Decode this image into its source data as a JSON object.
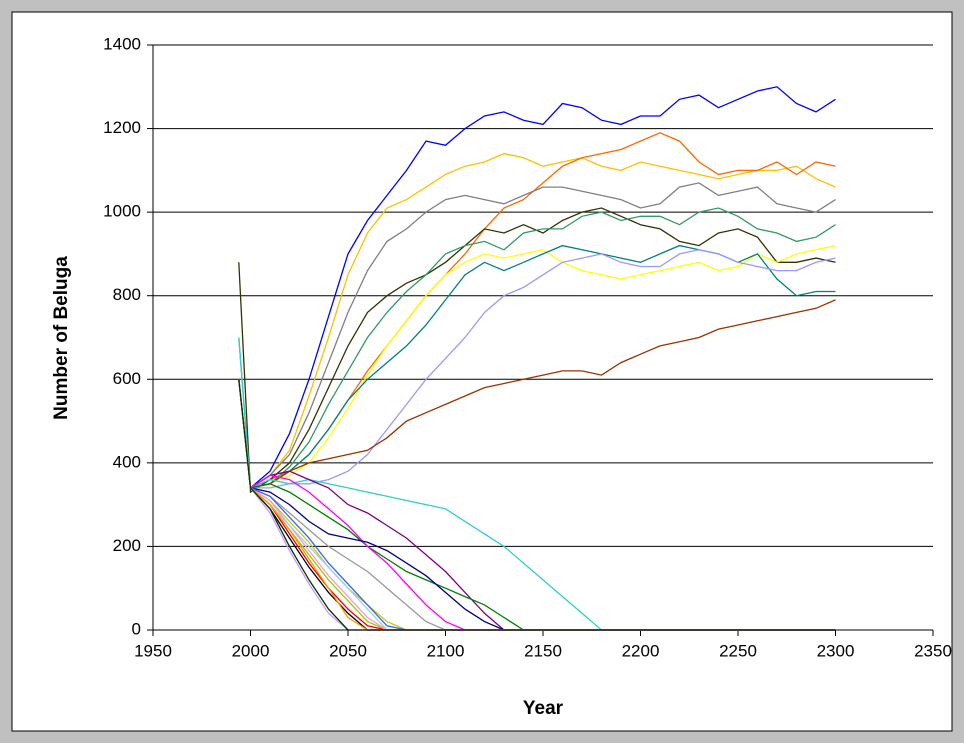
{
  "chart_data": {
    "type": "line",
    "x_label": "Year",
    "y_label": "Number of Beluga",
    "x": [
      1994,
      2000,
      2010,
      2020,
      2030,
      2040,
      2050,
      2060,
      2070,
      2080,
      2090,
      2100,
      2110,
      2120,
      2130,
      2140,
      2150,
      2160,
      2170,
      2180,
      2190,
      2200,
      2210,
      2220,
      2230,
      2240,
      2250,
      2260,
      2270,
      2280,
      2290,
      2300
    ],
    "xlim": [
      1950,
      2350
    ],
    "xticks": [
      1950,
      2000,
      2050,
      2100,
      2150,
      2200,
      2250,
      2300,
      2350
    ],
    "ylim": [
      0,
      1400
    ],
    "yticks": [
      0,
      200,
      400,
      600,
      800,
      1000,
      1200,
      1400
    ],
    "grid": true,
    "series": [
      {
        "color": "#0000ff",
        "values": [
          600,
          340,
          380,
          470,
          600,
          750,
          900,
          980,
          1040,
          1100,
          1170,
          1160,
          1200,
          1230,
          1240,
          1220,
          1210,
          1260,
          1250,
          1220,
          1210,
          1230,
          1230,
          1270,
          1280,
          1250,
          1270,
          1290,
          1300,
          1260,
          1240,
          1270
        ]
      },
      {
        "color": "#ffc000",
        "values": [
          600,
          340,
          370,
          430,
          560,
          700,
          850,
          950,
          1010,
          1030,
          1060,
          1090,
          1110,
          1120,
          1140,
          1130,
          1110,
          1120,
          1130,
          1110,
          1100,
          1120,
          1110,
          1100,
          1090,
          1080,
          1090,
          1100,
          1100,
          1110,
          1080,
          1060
        ]
      },
      {
        "color": "#ff6600",
        "values": [
          600,
          340,
          360,
          380,
          420,
          480,
          550,
          620,
          680,
          740,
          800,
          850,
          900,
          960,
          1010,
          1030,
          1070,
          1110,
          1130,
          1140,
          1150,
          1170,
          1190,
          1170,
          1120,
          1090,
          1100,
          1100,
          1120,
          1090,
          1120,
          1110
        ]
      },
      {
        "color": "#808080",
        "values": [
          700,
          340,
          370,
          420,
          520,
          640,
          760,
          860,
          930,
          960,
          1000,
          1030,
          1040,
          1030,
          1020,
          1040,
          1060,
          1060,
          1050,
          1040,
          1030,
          1010,
          1020,
          1060,
          1070,
          1040,
          1050,
          1060,
          1020,
          1010,
          1000,
          1030
        ]
      },
      {
        "color": "#333300",
        "values": [
          880,
          330,
          360,
          400,
          480,
          580,
          680,
          760,
          800,
          830,
          850,
          880,
          920,
          960,
          950,
          970,
          950,
          980,
          1000,
          1010,
          990,
          970,
          960,
          930,
          920,
          950,
          960,
          940,
          880,
          880,
          890,
          880
        ]
      },
      {
        "color": "#ffff00",
        "values": [
          600,
          340,
          350,
          370,
          400,
          460,
          530,
          610,
          680,
          740,
          800,
          850,
          880,
          900,
          890,
          900,
          910,
          880,
          860,
          850,
          840,
          850,
          860,
          870,
          880,
          860,
          870,
          900,
          880,
          900,
          910,
          920
        ]
      },
      {
        "color": "#008080",
        "values": [
          600,
          340,
          350,
          380,
          420,
          480,
          550,
          600,
          640,
          680,
          730,
          790,
          850,
          880,
          860,
          880,
          900,
          920,
          910,
          900,
          890,
          880,
          900,
          920,
          910,
          900,
          880,
          900,
          840,
          800,
          810,
          810
        ]
      },
      {
        "color": "#339966",
        "values": [
          600,
          340,
          350,
          390,
          450,
          540,
          620,
          700,
          760,
          810,
          850,
          900,
          920,
          930,
          910,
          950,
          960,
          960,
          990,
          1000,
          980,
          990,
          990,
          970,
          1000,
          1010,
          990,
          960,
          950,
          930,
          940,
          970
        ]
      },
      {
        "color": "#9999ff",
        "values": [
          600,
          340,
          340,
          350,
          350,
          360,
          380,
          420,
          480,
          540,
          600,
          650,
          700,
          760,
          800,
          820,
          850,
          880,
          890,
          900,
          880,
          870,
          870,
          900,
          910,
          900,
          880,
          870,
          860,
          860,
          880,
          890
        ]
      },
      {
        "color": "#993300",
        "values": [
          600,
          340,
          350,
          380,
          400,
          410,
          420,
          430,
          460,
          500,
          520,
          540,
          560,
          580,
          590,
          600,
          610,
          620,
          620,
          610,
          640,
          660,
          680,
          690,
          700,
          720,
          730,
          740,
          750,
          760,
          770,
          790
        ]
      },
      {
        "color": "#33cccc",
        "values": [
          700,
          340,
          360,
          350,
          360,
          350,
          340,
          330,
          320,
          310,
          300,
          290,
          260,
          230,
          200,
          160,
          120,
          80,
          40,
          0,
          0,
          0,
          0,
          0,
          0,
          0,
          0,
          0,
          0,
          0,
          0,
          0
        ]
      },
      {
        "color": "#800080",
        "values": [
          600,
          340,
          370,
          380,
          360,
          340,
          300,
          280,
          250,
          220,
          180,
          140,
          90,
          40,
          0,
          0,
          0,
          0,
          0,
          0,
          0,
          0,
          0,
          0,
          0,
          0,
          0,
          0,
          0,
          0,
          0,
          0
        ]
      },
      {
        "color": "#008000",
        "values": [
          600,
          340,
          350,
          330,
          300,
          270,
          240,
          200,
          170,
          140,
          120,
          100,
          80,
          60,
          30,
          0,
          0,
          0,
          0,
          0,
          0,
          0,
          0,
          0,
          0,
          0,
          0,
          0,
          0,
          0,
          0,
          0
        ]
      },
      {
        "color": "#ff00ff",
        "values": [
          600,
          340,
          370,
          360,
          330,
          290,
          250,
          200,
          160,
          110,
          60,
          20,
          0,
          0,
          0,
          0,
          0,
          0,
          0,
          0,
          0,
          0,
          0,
          0,
          0,
          0,
          0,
          0,
          0,
          0,
          0,
          0
        ]
      },
      {
        "color": "#000080",
        "values": [
          600,
          340,
          330,
          300,
          260,
          230,
          220,
          210,
          190,
          160,
          130,
          90,
          50,
          20,
          0,
          0,
          0,
          0,
          0,
          0,
          0,
          0,
          0,
          0,
          0,
          0,
          0,
          0,
          0,
          0,
          0,
          0
        ]
      },
      {
        "color": "#999999",
        "values": [
          600,
          340,
          320,
          280,
          240,
          200,
          170,
          140,
          100,
          60,
          20,
          0,
          0,
          0,
          0,
          0,
          0,
          0,
          0,
          0,
          0,
          0,
          0,
          0,
          0,
          0,
          0,
          0,
          0,
          0,
          0,
          0
        ]
      },
      {
        "color": "#cccc00",
        "values": [
          600,
          340,
          310,
          260,
          210,
          150,
          100,
          60,
          20,
          0,
          0,
          0,
          0,
          0,
          0,
          0,
          0,
          0,
          0,
          0,
          0,
          0,
          0,
          0,
          0,
          0,
          0,
          0,
          0,
          0,
          0,
          0
        ]
      },
      {
        "color": "#ff0000",
        "values": [
          600,
          340,
          300,
          230,
          160,
          100,
          50,
          10,
          0,
          0,
          0,
          0,
          0,
          0,
          0,
          0,
          0,
          0,
          0,
          0,
          0,
          0,
          0,
          0,
          0,
          0,
          0,
          0,
          0,
          0,
          0,
          0
        ]
      },
      {
        "color": "#000000",
        "values": [
          600,
          340,
          290,
          220,
          150,
          90,
          40,
          0,
          0,
          0,
          0,
          0,
          0,
          0,
          0,
          0,
          0,
          0,
          0,
          0,
          0,
          0,
          0,
          0,
          0,
          0,
          0,
          0,
          0,
          0,
          0,
          0
        ]
      },
      {
        "color": "#99cc00",
        "values": [
          600,
          340,
          300,
          240,
          180,
          120,
          70,
          20,
          0,
          0,
          0,
          0,
          0,
          0,
          0,
          0,
          0,
          0,
          0,
          0,
          0,
          0,
          0,
          0,
          0,
          0,
          0,
          0,
          0,
          0,
          0,
          0
        ]
      },
      {
        "color": "#ff99cc",
        "values": [
          600,
          340,
          310,
          250,
          190,
          130,
          80,
          30,
          0,
          0,
          0,
          0,
          0,
          0,
          0,
          0,
          0,
          0,
          0,
          0,
          0,
          0,
          0,
          0,
          0,
          0,
          0,
          0,
          0,
          0,
          0,
          0
        ]
      },
      {
        "color": "#cc99ff",
        "values": [
          600,
          340,
          280,
          190,
          110,
          40,
          0,
          0,
          0,
          0,
          0,
          0,
          0,
          0,
          0,
          0,
          0,
          0,
          0,
          0,
          0,
          0,
          0,
          0,
          0,
          0,
          0,
          0,
          0,
          0,
          0,
          0
        ]
      },
      {
        "color": "#3366ff",
        "values": [
          600,
          340,
          320,
          270,
          220,
          160,
          110,
          60,
          10,
          0,
          0,
          0,
          0,
          0,
          0,
          0,
          0,
          0,
          0,
          0,
          0,
          0,
          0,
          0,
          0,
          0,
          0,
          0,
          0,
          0,
          0,
          0
        ]
      },
      {
        "color": "#99ccff",
        "values": [
          600,
          340,
          300,
          250,
          200,
          150,
          100,
          50,
          0,
          0,
          0,
          0,
          0,
          0,
          0,
          0,
          0,
          0,
          0,
          0,
          0,
          0,
          0,
          0,
          0,
          0,
          0,
          0,
          0,
          0,
          0,
          0
        ]
      },
      {
        "color": "#ff9900",
        "values": [
          600,
          340,
          300,
          240,
          170,
          100,
          30,
          0,
          0,
          0,
          0,
          0,
          0,
          0,
          0,
          0,
          0,
          0,
          0,
          0,
          0,
          0,
          0,
          0,
          0,
          0,
          0,
          0,
          0,
          0,
          0,
          0
        ]
      },
      {
        "color": "#003300",
        "values": [
          600,
          340,
          290,
          200,
          120,
          50,
          0,
          0,
          0,
          0,
          0,
          0,
          0,
          0,
          0,
          0,
          0,
          0,
          0,
          0,
          0,
          0,
          0,
          0,
          0,
          0,
          0,
          0,
          0,
          0,
          0,
          0
        ]
      }
    ]
  }
}
